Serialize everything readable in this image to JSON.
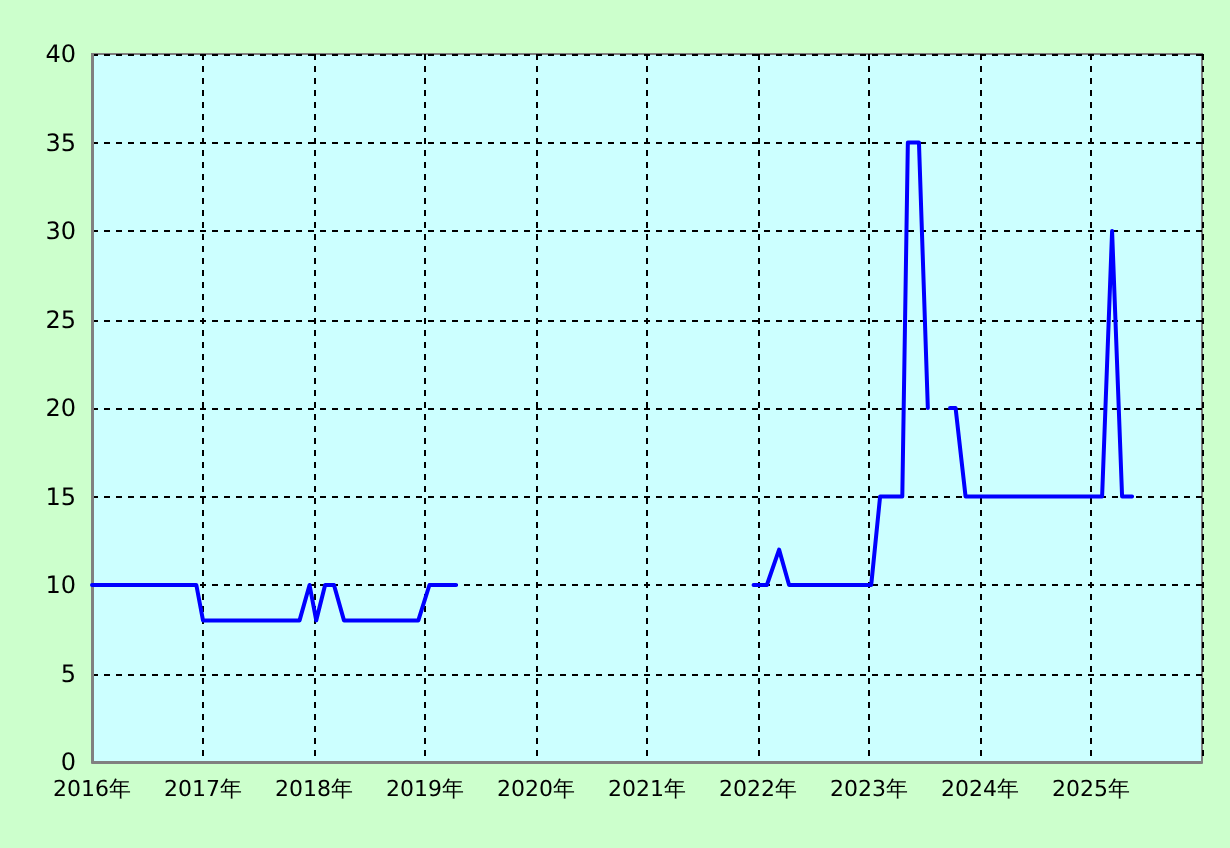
{
  "chart_data": {
    "type": "line",
    "x": [
      2016.0,
      2016.94,
      2017.0,
      2017.87,
      2017.96,
      2018.02,
      2018.1,
      2018.18,
      2018.27,
      2018.94,
      2019.04,
      2019.28,
      2020.5,
      2021.96,
      2022.08,
      2022.19,
      2022.28,
      2023.02,
      2023.1,
      2023.3,
      2023.35,
      2023.45,
      2023.53,
      2023.62,
      2023.73,
      2023.78,
      2023.87,
      2025.1,
      2025.19,
      2025.28,
      2025.37
    ],
    "series": [
      {
        "color": "#0000ff",
        "values": [
          10,
          10,
          8,
          8,
          10,
          8,
          10,
          10,
          8,
          8,
          10,
          10,
          null,
          10,
          10,
          12,
          10,
          10,
          15,
          15,
          35,
          35,
          20,
          null,
          20,
          20,
          15,
          15,
          30,
          15,
          15
        ]
      }
    ],
    "xlim": [
      2016,
      2026
    ],
    "xticks": [
      {
        "value": 2016,
        "label": "2016年"
      },
      {
        "value": 2017,
        "label": "2017年"
      },
      {
        "value": 2018,
        "label": "2018年"
      },
      {
        "value": 2019,
        "label": "2019年"
      },
      {
        "value": 2020,
        "label": "2020年"
      },
      {
        "value": 2021,
        "label": "2021年"
      },
      {
        "value": 2022,
        "label": "2022年"
      },
      {
        "value": 2023,
        "label": "2023年"
      },
      {
        "value": 2024,
        "label": "2024年"
      },
      {
        "value": 2025,
        "label": "2025年"
      },
      {
        "value": 2026,
        "label": null
      }
    ],
    "ylim": [
      0,
      40
    ],
    "yticks": [
      0,
      5,
      10,
      15,
      20,
      25,
      30,
      35,
      40
    ],
    "grid": true,
    "marker": "none",
    "line_style": "solid"
  }
}
